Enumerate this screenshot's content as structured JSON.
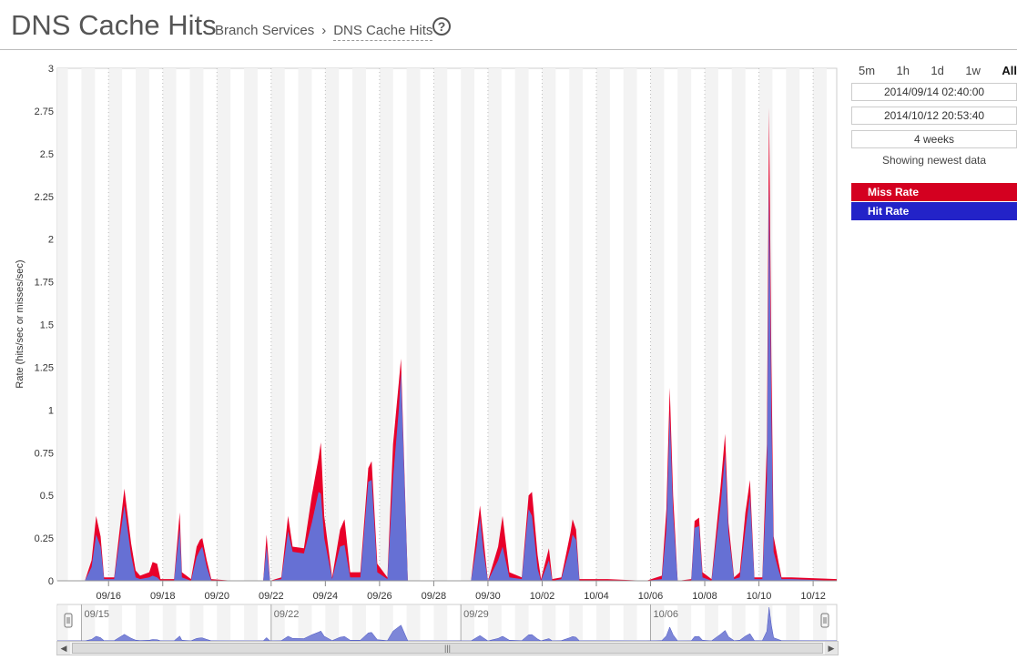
{
  "header": {
    "title": "DNS Cache Hits",
    "breadcrumb_parent": "Branch Services",
    "breadcrumb_sep": "›",
    "breadcrumb_current": "DNS Cache Hits",
    "help_icon": "?"
  },
  "controls": {
    "ranges": [
      "5m",
      "1h",
      "1d",
      "1w",
      "All"
    ],
    "active_range": "All",
    "start": "2014/09/14 02:40:00",
    "end": "2014/10/12 20:53:40",
    "duration": "4 weeks",
    "status": "Showing newest data"
  },
  "legend": [
    {
      "label": "Miss Rate",
      "color": "#d40020"
    },
    {
      "label": "Hit Rate",
      "color": "#2323c8"
    }
  ],
  "colors": {
    "miss_fill": "#e8002a",
    "hit_fill": "#6670d4",
    "band": "#f3f3f3"
  },
  "chart_data": {
    "type": "area",
    "stacked": true,
    "ylabel": "Rate (hits/sec or misses/sec)",
    "ylim": [
      0,
      3
    ],
    "yticks": [
      "0",
      "0.25",
      "0.5",
      "0.75",
      "1",
      "1.25",
      "1.5",
      "1.75",
      "2",
      "2.25",
      "2.5",
      "2.75",
      "3"
    ],
    "x_start": "2014-09-14T02:40",
    "x_end": "2014-10-12T20:53",
    "xticks": [
      {
        "label": "09/16",
        "date": "2014-09-16"
      },
      {
        "label": "09/18",
        "date": "2014-09-18"
      },
      {
        "label": "09/20",
        "date": "2014-09-20"
      },
      {
        "label": "09/22",
        "date": "2014-09-22"
      },
      {
        "label": "09/24",
        "date": "2014-09-24"
      },
      {
        "label": "09/26",
        "date": "2014-09-26"
      },
      {
        "label": "09/28",
        "date": "2014-09-28"
      },
      {
        "label": "09/30",
        "date": "2014-09-30"
      },
      {
        "label": "10/02",
        "date": "2014-10-02"
      },
      {
        "label": "10/04",
        "date": "2014-10-04"
      },
      {
        "label": "10/06",
        "date": "2014-10-06"
      },
      {
        "label": "10/08",
        "date": "2014-10-08"
      },
      {
        "label": "10/10",
        "date": "2014-10-10"
      },
      {
        "label": "10/12",
        "date": "2014-10-12"
      }
    ],
    "navigator_ticks": [
      {
        "label": "09/15",
        "date": "2014-09-15"
      },
      {
        "label": "09/22",
        "date": "2014-09-22"
      },
      {
        "label": "09/29",
        "date": "2014-09-29"
      },
      {
        "label": "10/06",
        "date": "2014-10-06"
      }
    ],
    "series": [
      {
        "name": "Miss Rate",
        "points": [
          [
            "2014-09-14T02:40",
            0.0
          ],
          [
            "2014-09-15T03:00",
            0.0
          ],
          [
            "2014-09-15T09:00",
            0.12
          ],
          [
            "2014-09-15T13:00",
            0.38
          ],
          [
            "2014-09-15T17:00",
            0.26
          ],
          [
            "2014-09-15T20:00",
            0.02
          ],
          [
            "2014-09-16T05:00",
            0.02
          ],
          [
            "2014-09-16T14:00",
            0.54
          ],
          [
            "2014-09-16T20:00",
            0.22
          ],
          [
            "2014-09-17T00:00",
            0.06
          ],
          [
            "2014-09-17T04:00",
            0.03
          ],
          [
            "2014-09-17T12:00",
            0.05
          ],
          [
            "2014-09-17T15:00",
            0.11
          ],
          [
            "2014-09-17T19:00",
            0.1
          ],
          [
            "2014-09-17T22:00",
            0.01
          ],
          [
            "2014-09-18T10:00",
            0.01
          ],
          [
            "2014-09-18T15:00",
            0.4
          ],
          [
            "2014-09-18T17:00",
            0.05
          ],
          [
            "2014-09-19T01:00",
            0.01
          ],
          [
            "2014-09-19T06:00",
            0.2
          ],
          [
            "2014-09-19T09:00",
            0.24
          ],
          [
            "2014-09-19T11:00",
            0.25
          ],
          [
            "2014-09-19T15:00",
            0.12
          ],
          [
            "2014-09-19T19:00",
            0.01
          ],
          [
            "2014-09-20T15:00",
            0.0
          ],
          [
            "2014-09-21T17:00",
            0.0
          ],
          [
            "2014-09-21T20:00",
            0.27
          ],
          [
            "2014-09-21T23:00",
            0.0
          ],
          [
            "2014-09-22T09:00",
            0.02
          ],
          [
            "2014-09-22T15:00",
            0.38
          ],
          [
            "2014-09-22T19:00",
            0.2
          ],
          [
            "2014-09-23T05:00",
            0.19
          ],
          [
            "2014-09-23T12:00",
            0.5
          ],
          [
            "2014-09-23T18:00",
            0.72
          ],
          [
            "2014-09-23T20:00",
            0.81
          ],
          [
            "2014-09-23T23:00",
            0.38
          ],
          [
            "2014-09-24T06:00",
            0.02
          ],
          [
            "2014-09-24T13:00",
            0.3
          ],
          [
            "2014-09-24T17:00",
            0.36
          ],
          [
            "2014-09-24T22:00",
            0.05
          ],
          [
            "2014-09-25T07:00",
            0.05
          ],
          [
            "2014-09-25T14:00",
            0.66
          ],
          [
            "2014-09-25T17:00",
            0.7
          ],
          [
            "2014-09-25T22:00",
            0.1
          ],
          [
            "2014-09-26T07:00",
            0.02
          ],
          [
            "2014-09-26T12:00",
            0.8
          ],
          [
            "2014-09-26T17:00",
            1.16
          ],
          [
            "2014-09-26T19:00",
            1.3
          ],
          [
            "2014-09-27T01:00",
            0.0
          ],
          [
            "2014-09-29T09:00",
            0.0
          ],
          [
            "2014-09-29T14:00",
            0.28
          ],
          [
            "2014-09-29T17:00",
            0.44
          ],
          [
            "2014-09-29T20:00",
            0.25
          ],
          [
            "2014-09-30T00:00",
            0.0
          ],
          [
            "2014-09-30T09:00",
            0.2
          ],
          [
            "2014-09-30T13:00",
            0.38
          ],
          [
            "2014-09-30T19:00",
            0.05
          ],
          [
            "2014-10-01T06:00",
            0.02
          ],
          [
            "2014-10-01T12:00",
            0.5
          ],
          [
            "2014-10-01T15:00",
            0.52
          ],
          [
            "2014-10-01T20:00",
            0.15
          ],
          [
            "2014-10-01T23:00",
            0.01
          ],
          [
            "2014-10-02T06:00",
            0.19
          ],
          [
            "2014-10-02T09:00",
            0.01
          ],
          [
            "2014-10-02T17:00",
            0.02
          ],
          [
            "2014-10-03T01:00",
            0.28
          ],
          [
            "2014-10-03T03:00",
            0.36
          ],
          [
            "2014-10-03T06:00",
            0.3
          ],
          [
            "2014-10-03T09:00",
            0.01
          ],
          [
            "2014-10-03T22:00",
            0.01
          ],
          [
            "2014-10-04T10:00",
            0.01
          ],
          [
            "2014-10-05T20:00",
            0.0
          ],
          [
            "2014-10-06T10:00",
            0.03
          ],
          [
            "2014-10-06T14:00",
            0.42
          ],
          [
            "2014-10-06T17:00",
            1.13
          ],
          [
            "2014-10-06T20:00",
            0.5
          ],
          [
            "2014-10-07T00:00",
            0.0
          ],
          [
            "2014-10-07T12:00",
            0.01
          ],
          [
            "2014-10-07T15:00",
            0.35
          ],
          [
            "2014-10-07T19:00",
            0.37
          ],
          [
            "2014-10-07T22:00",
            0.05
          ],
          [
            "2014-10-08T06:00",
            0.01
          ],
          [
            "2014-10-08T14:00",
            0.55
          ],
          [
            "2014-10-08T18:00",
            0.86
          ],
          [
            "2014-10-08T21:00",
            0.34
          ],
          [
            "2014-10-09T02:00",
            0.02
          ],
          [
            "2014-10-09T07:00",
            0.05
          ],
          [
            "2014-10-09T12:00",
            0.4
          ],
          [
            "2014-10-09T16:00",
            0.59
          ],
          [
            "2014-10-09T20:00",
            0.02
          ],
          [
            "2014-10-10T03:00",
            0.02
          ],
          [
            "2014-10-10T07:00",
            0.8
          ],
          [
            "2014-10-10T09:00",
            2.77
          ],
          [
            "2014-10-10T11:00",
            1.3
          ],
          [
            "2014-10-10T13:00",
            0.26
          ],
          [
            "2014-10-10T17:00",
            0.12
          ],
          [
            "2014-10-10T20:00",
            0.02
          ],
          [
            "2014-10-11T05:00",
            0.02
          ],
          [
            "2014-10-12T20:53",
            0.01
          ]
        ]
      },
      {
        "name": "Hit Rate",
        "points": [
          [
            "2014-09-14T02:40",
            0.0
          ],
          [
            "2014-09-15T03:00",
            0.0
          ],
          [
            "2014-09-15T09:00",
            0.08
          ],
          [
            "2014-09-15T13:00",
            0.27
          ],
          [
            "2014-09-15T17:00",
            0.2
          ],
          [
            "2014-09-15T20:00",
            0.01
          ],
          [
            "2014-09-16T05:00",
            0.01
          ],
          [
            "2014-09-16T14:00",
            0.44
          ],
          [
            "2014-09-16T20:00",
            0.15
          ],
          [
            "2014-09-17T00:00",
            0.02
          ],
          [
            "2014-09-17T04:00",
            0.01
          ],
          [
            "2014-09-17T12:00",
            0.02
          ],
          [
            "2014-09-17T15:00",
            0.03
          ],
          [
            "2014-09-17T19:00",
            0.02
          ],
          [
            "2014-09-17T22:00",
            0.0
          ],
          [
            "2014-09-18T10:00",
            0.0
          ],
          [
            "2014-09-18T15:00",
            0.31
          ],
          [
            "2014-09-18T17:00",
            0.02
          ],
          [
            "2014-09-19T01:00",
            0.0
          ],
          [
            "2014-09-19T06:00",
            0.14
          ],
          [
            "2014-09-19T09:00",
            0.18
          ],
          [
            "2014-09-19T11:00",
            0.2
          ],
          [
            "2014-09-19T15:00",
            0.08
          ],
          [
            "2014-09-19T19:00",
            0.0
          ],
          [
            "2014-09-20T15:00",
            0.0
          ],
          [
            "2014-09-21T17:00",
            0.0
          ],
          [
            "2014-09-21T20:00",
            0.2
          ],
          [
            "2014-09-21T23:00",
            0.0
          ],
          [
            "2014-09-22T09:00",
            0.01
          ],
          [
            "2014-09-22T15:00",
            0.29
          ],
          [
            "2014-09-22T19:00",
            0.17
          ],
          [
            "2014-09-23T05:00",
            0.16
          ],
          [
            "2014-09-23T12:00",
            0.34
          ],
          [
            "2014-09-23T18:00",
            0.52
          ],
          [
            "2014-09-23T20:00",
            0.51
          ],
          [
            "2014-09-23T23:00",
            0.25
          ],
          [
            "2014-09-24T06:00",
            0.01
          ],
          [
            "2014-09-24T13:00",
            0.2
          ],
          [
            "2014-09-24T17:00",
            0.21
          ],
          [
            "2014-09-24T22:00",
            0.02
          ],
          [
            "2014-09-25T07:00",
            0.02
          ],
          [
            "2014-09-25T14:00",
            0.58
          ],
          [
            "2014-09-25T17:00",
            0.59
          ],
          [
            "2014-09-25T22:00",
            0.05
          ],
          [
            "2014-09-26T07:00",
            0.01
          ],
          [
            "2014-09-26T12:00",
            0.6
          ],
          [
            "2014-09-26T17:00",
            1.0
          ],
          [
            "2014-09-26T19:00",
            1.22
          ],
          [
            "2014-09-27T01:00",
            0.0
          ],
          [
            "2014-09-29T09:00",
            0.0
          ],
          [
            "2014-09-29T14:00",
            0.2
          ],
          [
            "2014-09-29T17:00",
            0.37
          ],
          [
            "2014-09-29T20:00",
            0.17
          ],
          [
            "2014-09-30T00:00",
            0.0
          ],
          [
            "2014-09-30T09:00",
            0.12
          ],
          [
            "2014-09-30T13:00",
            0.2
          ],
          [
            "2014-09-30T19:00",
            0.02
          ],
          [
            "2014-10-01T06:00",
            0.01
          ],
          [
            "2014-10-01T12:00",
            0.42
          ],
          [
            "2014-10-01T15:00",
            0.38
          ],
          [
            "2014-10-01T20:00",
            0.07
          ],
          [
            "2014-10-01T23:00",
            0.0
          ],
          [
            "2014-10-02T06:00",
            0.12
          ],
          [
            "2014-10-02T09:00",
            0.0
          ],
          [
            "2014-10-02T17:00",
            0.01
          ],
          [
            "2014-10-03T01:00",
            0.2
          ],
          [
            "2014-10-03T03:00",
            0.27
          ],
          [
            "2014-10-03T06:00",
            0.24
          ],
          [
            "2014-10-03T09:00",
            0.0
          ],
          [
            "2014-10-03T22:00",
            0.0
          ],
          [
            "2014-10-04T10:00",
            0.0
          ],
          [
            "2014-10-05T20:00",
            0.0
          ],
          [
            "2014-10-06T10:00",
            0.01
          ],
          [
            "2014-10-06T14:00",
            0.3
          ],
          [
            "2014-10-06T17:00",
            0.98
          ],
          [
            "2014-10-06T20:00",
            0.4
          ],
          [
            "2014-10-07T00:00",
            0.0
          ],
          [
            "2014-10-07T12:00",
            0.0
          ],
          [
            "2014-10-07T15:00",
            0.31
          ],
          [
            "2014-10-07T19:00",
            0.32
          ],
          [
            "2014-10-07T22:00",
            0.02
          ],
          [
            "2014-10-08T06:00",
            0.0
          ],
          [
            "2014-10-08T14:00",
            0.44
          ],
          [
            "2014-10-08T18:00",
            0.74
          ],
          [
            "2014-10-08T21:00",
            0.28
          ],
          [
            "2014-10-09T02:00",
            0.01
          ],
          [
            "2014-10-09T07:00",
            0.02
          ],
          [
            "2014-10-09T12:00",
            0.3
          ],
          [
            "2014-10-09T16:00",
            0.5
          ],
          [
            "2014-10-09T20:00",
            0.01
          ],
          [
            "2014-10-10T03:00",
            0.01
          ],
          [
            "2014-10-10T07:00",
            0.6
          ],
          [
            "2014-10-10T09:00",
            2.33
          ],
          [
            "2014-10-10T11:00",
            1.0
          ],
          [
            "2014-10-10T13:00",
            0.17
          ],
          [
            "2014-10-10T17:00",
            0.07
          ],
          [
            "2014-10-10T20:00",
            0.01
          ],
          [
            "2014-10-11T05:00",
            0.01
          ],
          [
            "2014-10-12T20:53",
            0.0
          ]
        ]
      }
    ]
  },
  "scrollbar": {
    "grip": "|||",
    "left_arrow": "◀",
    "right_arrow": "▶"
  }
}
